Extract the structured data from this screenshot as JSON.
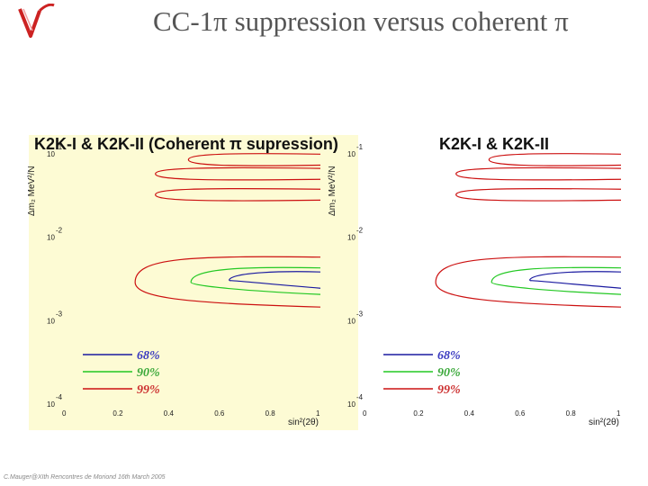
{
  "slide": {
    "title": "CC-1π suppression versus coherent π",
    "footer": "C.Mauger@XIth Rencontres de Moriond 16th March 2005"
  },
  "colors": {
    "panel_left_bg": "#fdfbd4",
    "panel_right_bg": "#ffffff",
    "cl68": "#1a1aa0",
    "cl90": "#22c822",
    "cl99": "#cc1010",
    "legend_68": "#3a3ac0",
    "legend_90": "#3aa83a",
    "legend_99": "#cc3030"
  },
  "chart_data": [
    {
      "type": "contour",
      "title": "K2K-I & K2K-II (Coherent π supression)",
      "xlabel": "sin²(2θ)",
      "ylabel": "Δm₂ MeV²/N",
      "xlim": [
        0,
        1
      ],
      "ylim_log10": [
        -4,
        -1
      ],
      "x_ticks": [
        "0",
        "0.2",
        "0.4",
        "0.6",
        "0.8",
        "1"
      ],
      "y_ticks": [
        "10",
        "10",
        "10",
        "10"
      ],
      "y_tick_exponents": [
        "-1",
        "-2",
        "-3",
        "-4"
      ],
      "legend": [
        {
          "label": "68%",
          "color_key": "cl68"
        },
        {
          "label": "90%",
          "color_key": "cl90"
        },
        {
          "label": "99%",
          "color_key": "cl99"
        }
      ],
      "contours": {
        "cl99_islands": [
          {
            "x_min": 0.48,
            "x_max": 1.0,
            "log_dm2": -1.08
          },
          {
            "x_min": 0.35,
            "x_max": 1.0,
            "log_dm2": -1.25
          },
          {
            "x_min": 0.35,
            "x_max": 1.0,
            "log_dm2": -1.5
          }
        ],
        "cl99_main": {
          "x_min": 0.27,
          "log_dm2_top": -2.25,
          "log_dm2_bottom": -2.85,
          "log_dm2_center": -2.55
        },
        "cl90_main": {
          "x_min": 0.49,
          "log_dm2_top": -2.38,
          "log_dm2_bottom": -2.7,
          "log_dm2_center": -2.55
        },
        "cl68_main": {
          "x_min": 0.64,
          "log_dm2_top": -2.43,
          "log_dm2_bottom": -2.63,
          "log_dm2_center": -2.53
        }
      }
    },
    {
      "type": "contour",
      "title": "K2K-I & K2K-II",
      "xlabel": "sin²(2θ)",
      "ylabel": "Δm₂ MeV²/N",
      "xlim": [
        0,
        1
      ],
      "ylim_log10": [
        -4,
        -1
      ],
      "x_ticks": [
        "0",
        "0.2",
        "0.4",
        "0.6",
        "0.8",
        "1"
      ],
      "y_ticks": [
        "10",
        "10",
        "10",
        "10"
      ],
      "y_tick_exponents": [
        "-1",
        "-2",
        "-3",
        "-4"
      ],
      "legend": [
        {
          "label": "68%",
          "color_key": "cl68"
        },
        {
          "label": "90%",
          "color_key": "cl90"
        },
        {
          "label": "99%",
          "color_key": "cl99"
        }
      ],
      "contours": {
        "cl99_islands": [
          {
            "x_min": 0.48,
            "x_max": 1.0,
            "log_dm2": -1.08
          },
          {
            "x_min": 0.35,
            "x_max": 1.0,
            "log_dm2": -1.25
          },
          {
            "x_min": 0.35,
            "x_max": 1.0,
            "log_dm2": -1.5
          }
        ],
        "cl99_main": {
          "x_min": 0.27,
          "log_dm2_top": -2.25,
          "log_dm2_bottom": -2.85,
          "log_dm2_center": -2.55
        },
        "cl90_main": {
          "x_min": 0.49,
          "log_dm2_top": -2.38,
          "log_dm2_bottom": -2.7,
          "log_dm2_center": -2.55
        },
        "cl68_main": {
          "x_min": 0.64,
          "log_dm2_top": -2.43,
          "log_dm2_bottom": -2.63,
          "log_dm2_center": -2.53
        }
      }
    }
  ]
}
